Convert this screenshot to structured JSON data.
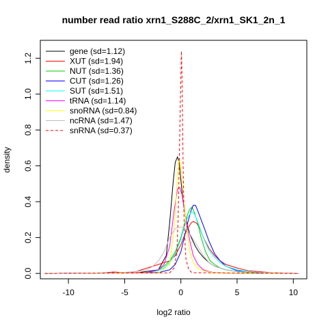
{
  "chart_data": {
    "type": "line",
    "title": "number read ratio xrn1_S288C_2/xrn1_SK1_2n_1",
    "xlabel": "log2 ratio",
    "ylabel": "density",
    "xlim": [
      -12.5,
      11.2
    ],
    "ylim": [
      -0.03,
      1.3
    ],
    "x_ticks": [
      -10,
      -5,
      0,
      5,
      10
    ],
    "y_ticks": [
      0.0,
      0.2,
      0.4,
      0.6,
      0.8,
      1.0,
      1.2
    ],
    "legend_position": "top-left",
    "grid": false,
    "series": [
      {
        "name": "gene (sd=1.12)",
        "color": "#000000",
        "dash": false,
        "x": [
          -12.1,
          -4,
          -2,
          -1.3,
          -1,
          -0.7,
          -0.5,
          -0.3,
          -0.15,
          0,
          0.2,
          0.4,
          0.6,
          0.8,
          1,
          1.3,
          1.6,
          2,
          2.5,
          3,
          4,
          5,
          7,
          10.5
        ],
        "y": [
          0,
          0.003,
          0.02,
          0.1,
          0.28,
          0.5,
          0.62,
          0.65,
          0.62,
          0.52,
          0.4,
          0.32,
          0.26,
          0.22,
          0.19,
          0.15,
          0.12,
          0.09,
          0.06,
          0.04,
          0.02,
          0.01,
          0.003,
          0
        ]
      },
      {
        "name": "XUT (sd=1.94)",
        "color": "#ff0000",
        "dash": false,
        "x": [
          -12.1,
          -7,
          -6,
          -5,
          -4,
          -3,
          -2,
          -1.5,
          -1,
          -0.5,
          0,
          0.3,
          0.6,
          0.9,
          1.1,
          1.4,
          1.7,
          2,
          2.5,
          3,
          3.5,
          4,
          5,
          6,
          8,
          10.5
        ],
        "y": [
          0,
          0.002,
          0.008,
          0.005,
          0.01,
          0.03,
          0.05,
          0.06,
          0.07,
          0.1,
          0.16,
          0.21,
          0.25,
          0.28,
          0.29,
          0.28,
          0.25,
          0.2,
          0.14,
          0.1,
          0.07,
          0.05,
          0.03,
          0.015,
          0.005,
          0
        ]
      },
      {
        "name": "NUT (sd=1.36)",
        "color": "#00cd00",
        "dash": false,
        "x": [
          -12.1,
          -3,
          -2,
          -1.5,
          -1,
          -0.5,
          0,
          0.3,
          0.6,
          0.8,
          1,
          1.2,
          1.5,
          1.8,
          2.2,
          2.6,
          3,
          3.5,
          4,
          5,
          7,
          10.5
        ],
        "y": [
          0,
          0.005,
          0.02,
          0.04,
          0.07,
          0.12,
          0.2,
          0.27,
          0.33,
          0.36,
          0.37,
          0.34,
          0.28,
          0.2,
          0.12,
          0.07,
          0.05,
          0.03,
          0.02,
          0.01,
          0.003,
          0
        ]
      },
      {
        "name": "CUT (sd=1.26)",
        "color": "#0000ff",
        "dash": false,
        "x": [
          -12.1,
          -2,
          -1,
          -0.5,
          0,
          0.3,
          0.6,
          0.9,
          1.1,
          1.3,
          1.5,
          1.8,
          2.1,
          2.5,
          3,
          3.5,
          4,
          5,
          7,
          10.5
        ],
        "y": [
          0,
          0.005,
          0.02,
          0.05,
          0.12,
          0.2,
          0.28,
          0.35,
          0.38,
          0.38,
          0.35,
          0.3,
          0.25,
          0.18,
          0.11,
          0.07,
          0.04,
          0.015,
          0.004,
          0
        ]
      },
      {
        "name": "SUT (sd=1.51)",
        "color": "#00ffff",
        "dash": false,
        "x": [
          -12.1,
          -3,
          -2,
          -1.5,
          -1,
          -0.5,
          0,
          0.3,
          0.6,
          0.9,
          1.1,
          1.3,
          1.6,
          2,
          2.5,
          3,
          3.5,
          4,
          5,
          6,
          8,
          10.5
        ],
        "y": [
          0,
          0.005,
          0.015,
          0.03,
          0.06,
          0.11,
          0.19,
          0.26,
          0.31,
          0.34,
          0.34,
          0.32,
          0.27,
          0.2,
          0.13,
          0.09,
          0.06,
          0.04,
          0.02,
          0.01,
          0.003,
          0
        ]
      },
      {
        "name": "tRNA (sd=1.14)",
        "color": "#ff00ff",
        "dash": false,
        "x": [
          -12.1,
          -3,
          -2,
          -1.5,
          -1,
          -0.6,
          -0.3,
          -0.1,
          0.1,
          0.3,
          0.5,
          0.8,
          1.1,
          1.5,
          2,
          2.5,
          3,
          4,
          5,
          10.5
        ],
        "y": [
          0,
          0.005,
          0.02,
          0.05,
          0.15,
          0.35,
          0.47,
          0.48,
          0.44,
          0.36,
          0.28,
          0.18,
          0.1,
          0.05,
          0.02,
          0.01,
          0.005,
          0.002,
          0,
          0
        ]
      },
      {
        "name": "snoRNA (sd=0.84)",
        "color": "#ffff00",
        "dash": false,
        "x": [
          -12.1,
          -2,
          -1,
          -0.6,
          -0.3,
          -0.15,
          0,
          0.15,
          0.3,
          0.5,
          0.8,
          1.1,
          1.5,
          2,
          2.5,
          3,
          4,
          10.5
        ],
        "y": [
          0,
          0.002,
          0.05,
          0.25,
          0.55,
          0.64,
          0.6,
          0.5,
          0.38,
          0.25,
          0.12,
          0.06,
          0.03,
          0.015,
          0.008,
          0.004,
          0.001,
          0
        ]
      },
      {
        "name": "ncRNA (sd=1.47)",
        "color": "#bebebe",
        "dash": false,
        "x": [
          -12.1,
          -6,
          -4,
          -3,
          -2.5,
          -2,
          -1.5,
          -1,
          -0.5,
          0,
          0.5,
          1,
          1.5,
          2,
          2.5,
          3,
          4,
          5,
          10.5
        ],
        "y": [
          0,
          0.003,
          0.01,
          0.02,
          0.04,
          0.07,
          0.12,
          0.2,
          0.25,
          0.26,
          0.25,
          0.2,
          0.15,
          0.1,
          0.06,
          0.04,
          0.02,
          0.01,
          0
        ]
      },
      {
        "name": "snRNA (sd=0.37)",
        "color": "#ff0000",
        "dash": true,
        "x": [
          -12.1,
          -1,
          -0.6,
          -0.35,
          -0.25,
          -0.15,
          -0.05,
          0.05,
          0.1,
          0.2,
          0.3,
          0.45,
          0.7,
          1,
          10.5
        ],
        "y": [
          0,
          0.003,
          0.03,
          0.12,
          0.3,
          0.6,
          0.95,
          1.24,
          1.1,
          0.6,
          0.25,
          0.08,
          0.02,
          0.004,
          0
        ]
      }
    ]
  }
}
